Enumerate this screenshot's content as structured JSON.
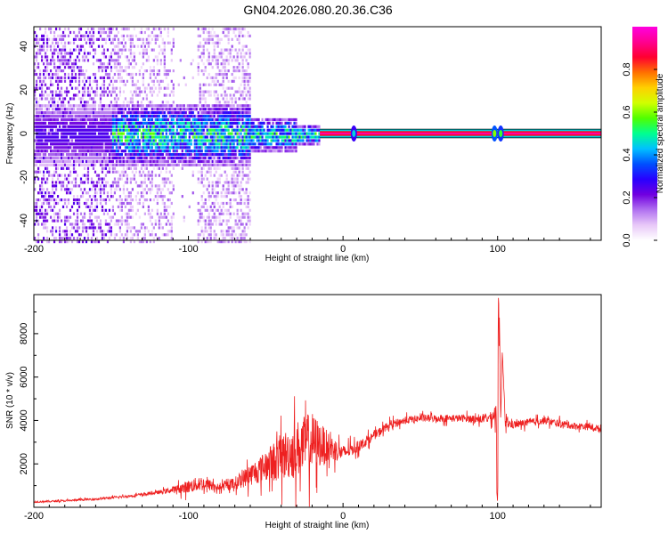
{
  "title": "GN04.2026.080.20.36.C36",
  "chart_data": [
    {
      "type": "heatmap",
      "name": "spectrogram",
      "xlabel": "Height of straight line (km)",
      "ylabel": "Frequency (Hz)",
      "xlim": [
        -200,
        167
      ],
      "ylim": [
        -49,
        49
      ],
      "xticks": [
        -200,
        -100,
        0,
        100
      ],
      "yticks": [
        -40,
        -20,
        0,
        20,
        40
      ],
      "colorbar": {
        "label": "Normalized spectral amplitude",
        "range": [
          0.0,
          1.0
        ],
        "ticks": [
          0.0,
          0.2,
          0.4,
          0.6,
          0.8
        ],
        "colors": [
          "#ffffff",
          "#e8c8f8",
          "#b070f0",
          "#7000e0",
          "#2800ff",
          "#0050ff",
          "#00c0ff",
          "#00ff90",
          "#50ff00",
          "#d0ff00",
          "#ffd000",
          "#ff7000",
          "#ff0030",
          "#ff0090",
          "#ff00e0"
        ]
      },
      "band": {
        "freq_center": 0,
        "freq_halfwidth": 2,
        "x_start": -15,
        "x_end": 167,
        "amplitude": 0.95
      },
      "bursts": [
        {
          "x": 7,
          "amplitude": 0.45
        },
        {
          "x": 98,
          "amplitude": 0.6
        },
        {
          "x": 102,
          "amplitude": 0.55
        }
      ],
      "noise_region": {
        "x_start": -200,
        "x_end": -60,
        "level": 0.15
      },
      "core_region": {
        "x_start": -150,
        "x_end": -15,
        "amplitude_max": 0.55
      }
    },
    {
      "type": "line",
      "name": "snr",
      "xlabel": "Height of straight line (km)",
      "ylabel": "SNR (10 * v/v)",
      "xlim": [
        -200,
        167
      ],
      "ylim": [
        0,
        9800
      ],
      "xticks": [
        -200,
        -100,
        0,
        100
      ],
      "yticks": [
        2000,
        4000,
        6000,
        8000
      ],
      "color": "#ee2020",
      "series": [
        {
          "name": "SNR",
          "x": [
            -200,
            -180,
            -160,
            -140,
            -120,
            -110,
            -100,
            -92,
            -85,
            -80,
            -70,
            -60,
            -50,
            -40,
            -30,
            -20,
            -10,
            0,
            10,
            20,
            30,
            40,
            50,
            60,
            70,
            80,
            90,
            96,
            99,
            100,
            101,
            102,
            103,
            105,
            110,
            120,
            130,
            140,
            150,
            160,
            167
          ],
          "y": [
            250,
            300,
            380,
            500,
            680,
            800,
            950,
            1100,
            1000,
            900,
            1100,
            1500,
            1900,
            2300,
            2700,
            3000,
            2800,
            2500,
            2800,
            3300,
            3800,
            4000,
            4100,
            4100,
            4100,
            4100,
            4050,
            4150,
            4400,
            200,
            9800,
            3900,
            7200,
            3900,
            3800,
            3900,
            4000,
            3850,
            3750,
            3700,
            3600
          ],
          "noise": [
            40,
            40,
            50,
            60,
            80,
            150,
            300,
            350,
            250,
            150,
            300,
            500,
            700,
            1100,
            1300,
            1400,
            700,
            350,
            250,
            200,
            180,
            170,
            170,
            170,
            170,
            170,
            180,
            250,
            500,
            0,
            0,
            0,
            0,
            250,
            180,
            170,
            170,
            170,
            160,
            160,
            160
          ]
        }
      ]
    }
  ]
}
